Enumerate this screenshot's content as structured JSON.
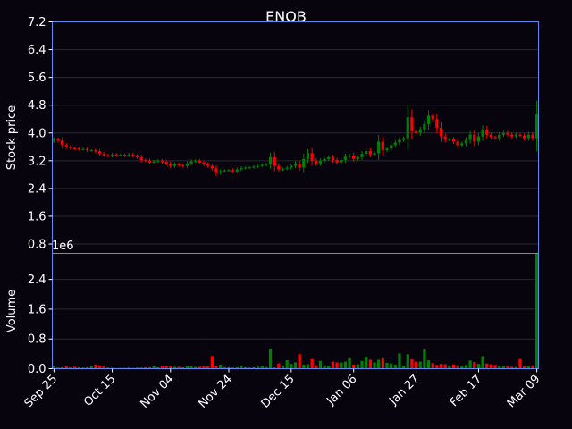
{
  "chart_data": {
    "type": "candlestick",
    "title": "ENOB",
    "ylabel_price": "Stock price",
    "ylabel_volume": "Volume",
    "volume_multiplier_label": "1e6",
    "price_ylim": [
      0.53,
      7.2
    ],
    "price_ticks": [
      "0.8",
      "1.6",
      "2.4",
      "3.2",
      "4.0",
      "4.8",
      "5.6",
      "6.4",
      "7.2"
    ],
    "volume_ylim": [
      0,
      3100000
    ],
    "volume_ticks": [
      "0.0",
      "0.8",
      "1.6",
      "2.4"
    ],
    "x_tick_labels": [
      "Sep 25",
      "Oct 15",
      "Nov 04",
      "Nov 24",
      "Dec 15",
      "Jan 06",
      "Jan 27",
      "Feb 17",
      "Mar 09"
    ],
    "x_tick_positions": [
      0,
      14,
      28,
      42,
      57,
      72,
      87,
      102,
      116
    ],
    "up_color": "#008000",
    "down_color": "#ff0000",
    "background": "#07040d",
    "grid": true,
    "close": [
      3.82,
      3.78,
      3.65,
      3.6,
      3.56,
      3.55,
      3.53,
      3.54,
      3.5,
      3.5,
      3.47,
      3.4,
      3.36,
      3.34,
      3.38,
      3.36,
      3.37,
      3.35,
      3.38,
      3.34,
      3.3,
      3.22,
      3.2,
      3.15,
      3.18,
      3.2,
      3.17,
      3.12,
      3.05,
      3.1,
      3.07,
      3.05,
      3.12,
      3.18,
      3.2,
      3.15,
      3.1,
      3.05,
      2.98,
      2.85,
      2.9,
      2.92,
      2.93,
      2.89,
      2.95,
      2.99,
      3.0,
      3.01,
      3.03,
      3.05,
      3.08,
      3.1,
      3.3,
      3.05,
      2.95,
      2.97,
      3.0,
      3.05,
      3.12,
      3.0,
      3.25,
      3.42,
      3.2,
      3.12,
      3.2,
      3.25,
      3.3,
      3.22,
      3.15,
      3.22,
      3.32,
      3.35,
      3.25,
      3.3,
      3.4,
      3.48,
      3.38,
      3.42,
      3.75,
      3.5,
      3.55,
      3.65,
      3.72,
      3.8,
      3.85,
      4.45,
      4.05,
      4.0,
      4.1,
      4.25,
      4.5,
      4.4,
      4.15,
      3.9,
      3.8,
      3.82,
      3.75,
      3.65,
      3.7,
      3.8,
      3.95,
      3.75,
      3.9,
      4.1,
      3.95,
      3.88,
      3.85,
      3.95,
      4.0,
      3.95,
      3.9,
      3.95,
      3.92,
      3.85,
      3.95,
      3.85,
      4.55
    ],
    "volume": [
      60000,
      30000,
      40000,
      60000,
      40000,
      50000,
      40000,
      30000,
      40000,
      70000,
      110000,
      90000,
      60000,
      30000,
      20000,
      10000,
      20000,
      20000,
      30000,
      20000,
      30000,
      30000,
      40000,
      40000,
      60000,
      40000,
      70000,
      60000,
      80000,
      50000,
      50000,
      40000,
      60000,
      60000,
      50000,
      50000,
      70000,
      60000,
      340000,
      60000,
      110000,
      40000,
      40000,
      30000,
      40000,
      70000,
      40000,
      30000,
      40000,
      50000,
      60000,
      40000,
      530000,
      30000,
      140000,
      80000,
      230000,
      130000,
      170000,
      390000,
      110000,
      120000,
      260000,
      90000,
      210000,
      90000,
      80000,
      190000,
      170000,
      170000,
      190000,
      280000,
      110000,
      120000,
      210000,
      300000,
      240000,
      170000,
      240000,
      280000,
      160000,
      140000,
      110000,
      410000,
      60000,
      390000,
      250000,
      190000,
      190000,
      520000,
      230000,
      150000,
      100000,
      130000,
      120000,
      90000,
      110000,
      90000,
      60000,
      100000,
      220000,
      180000,
      130000,
      340000,
      140000,
      120000,
      100000,
      80000,
      70000,
      60000,
      50000,
      50000,
      260000,
      80000,
      70000,
      90000,
      3100000
    ]
  }
}
